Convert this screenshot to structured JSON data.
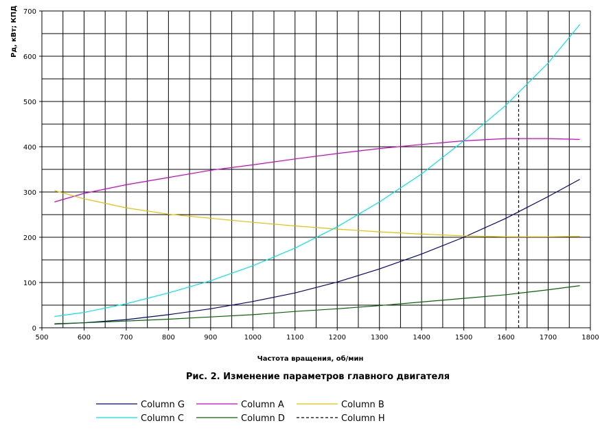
{
  "chart_data": {
    "type": "line",
    "title": "",
    "caption": "Рис. 2. Изменение параметров главного двигателя",
    "xlabel": "Частота вращения, об/мин",
    "ylabel": "Pд, кВт; КПД",
    "xlim": [
      500,
      1800
    ],
    "ylim": [
      0,
      700
    ],
    "xticks": [
      500,
      600,
      700,
      800,
      900,
      1000,
      1100,
      1200,
      1300,
      1400,
      1500,
      1600,
      1700,
      1800
    ],
    "yticks": [
      0,
      100,
      200,
      300,
      400,
      500,
      600,
      700
    ],
    "grid": true,
    "legend_position": "bottom",
    "series": [
      {
        "name": "Column G",
        "color": "#000080",
        "dash": "solid",
        "x": [
          530,
          600,
          700,
          800,
          900,
          1000,
          1100,
          1200,
          1300,
          1400,
          1500,
          1600,
          1700,
          1775
        ],
        "y": [
          8,
          11,
          18,
          29,
          42,
          58,
          77,
          101,
          130,
          163,
          200,
          242,
          290,
          328
        ]
      },
      {
        "name": "Column A",
        "color": "#cc00cc",
        "dash": "solid",
        "x": [
          530,
          600,
          700,
          800,
          900,
          1000,
          1100,
          1200,
          1300,
          1400,
          1500,
          1600,
          1700,
          1775
        ],
        "y": [
          278,
          297,
          316,
          332,
          348,
          360,
          373,
          385,
          396,
          405,
          413,
          418,
          418,
          416
        ]
      },
      {
        "name": "Column B",
        "color": "#e6c000",
        "dash": "solid",
        "x": [
          530,
          600,
          700,
          800,
          900,
          1000,
          1100,
          1200,
          1300,
          1400,
          1500,
          1600,
          1700,
          1775
        ],
        "y": [
          303,
          285,
          265,
          251,
          242,
          233,
          225,
          218,
          212,
          207,
          203,
          201,
          201,
          202
        ]
      },
      {
        "name": "Column C",
        "color": "#00e5ee",
        "dash": "solid",
        "x": [
          530,
          600,
          700,
          800,
          900,
          1000,
          1100,
          1200,
          1300,
          1400,
          1500,
          1600,
          1700,
          1775
        ],
        "y": [
          25,
          34,
          53,
          77,
          104,
          137,
          176,
          223,
          278,
          340,
          413,
          492,
          585,
          670
        ]
      },
      {
        "name": "Column D",
        "color": "#006600",
        "dash": "solid",
        "x": [
          530,
          600,
          700,
          800,
          900,
          1000,
          1100,
          1200,
          1300,
          1400,
          1500,
          1600,
          1700,
          1775
        ],
        "y": [
          9,
          11,
          15,
          19,
          24,
          29,
          36,
          42,
          49,
          57,
          65,
          73,
          84,
          93
        ]
      },
      {
        "name": "Column H",
        "color": "#000000",
        "dash": "dashed",
        "x": [
          1630,
          1630
        ],
        "y": [
          0,
          515
        ]
      }
    ]
  }
}
